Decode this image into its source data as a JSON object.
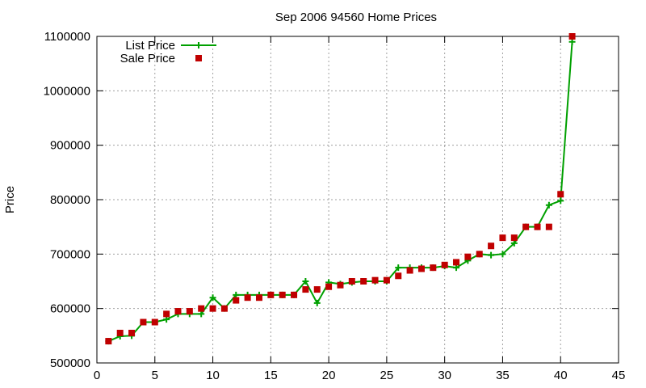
{
  "chart_data": {
    "type": "line",
    "title": "Sep 2006 94560 Home Prices",
    "xlabel": "",
    "ylabel": "Price",
    "xlim": [
      0,
      45
    ],
    "ylim": [
      500000,
      1100000
    ],
    "xticks": [
      0,
      5,
      10,
      15,
      20,
      25,
      30,
      35,
      40,
      45
    ],
    "yticks": [
      500000,
      600000,
      700000,
      800000,
      900000,
      1000000,
      1100000
    ],
    "grid": true,
    "legend_position": "top-left",
    "series": [
      {
        "name": "List Price",
        "style": "line-plus",
        "color": "#00a000",
        "x": [
          1,
          2,
          3,
          4,
          5,
          6,
          7,
          8,
          9,
          10,
          11,
          12,
          13,
          14,
          15,
          16,
          17,
          18,
          19,
          20,
          21,
          22,
          23,
          24,
          25,
          26,
          27,
          28,
          29,
          30,
          31,
          32,
          33,
          34,
          35,
          36,
          37,
          38,
          39,
          40,
          41
        ],
        "y": [
          540000,
          549000,
          550000,
          575000,
          575000,
          580000,
          590000,
          590000,
          590000,
          620000,
          600000,
          625000,
          625000,
          625000,
          625000,
          625000,
          625000,
          650000,
          610000,
          648000,
          645000,
          648000,
          650000,
          650000,
          650000,
          675000,
          675000,
          675000,
          675000,
          678000,
          675000,
          688000,
          700000,
          698000,
          700000,
          720000,
          750000,
          750000,
          790000,
          798000,
          1090000
        ]
      },
      {
        "name": "Sale Price",
        "style": "square-markers",
        "color": "#c00000",
        "x": [
          1,
          2,
          3,
          4,
          5,
          6,
          7,
          8,
          9,
          10,
          11,
          12,
          13,
          14,
          15,
          16,
          17,
          18,
          19,
          20,
          21,
          22,
          23,
          24,
          25,
          26,
          27,
          28,
          29,
          30,
          31,
          32,
          33,
          34,
          35,
          36,
          37,
          38,
          39,
          40,
          41
        ],
        "y": [
          540000,
          555000,
          555000,
          575000,
          575000,
          590000,
          595000,
          595000,
          600000,
          600000,
          600000,
          615000,
          620000,
          620000,
          625000,
          625000,
          625000,
          635000,
          635000,
          640000,
          643000,
          650000,
          650000,
          652000,
          652000,
          660000,
          670000,
          673000,
          675000,
          680000,
          685000,
          695000,
          700000,
          715000,
          730000,
          730000,
          750000,
          750000,
          750000,
          810000,
          1100000
        ]
      }
    ]
  }
}
